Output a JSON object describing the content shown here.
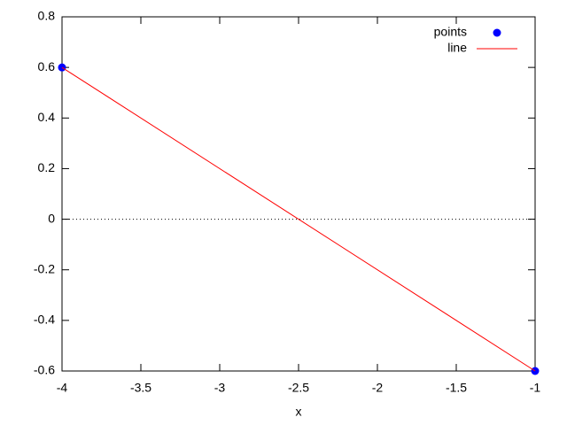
{
  "chart_data": {
    "type": "line",
    "xlabel": "x",
    "x": [
      -4,
      -1
    ],
    "series": [
      {
        "name": "points",
        "mode": "points",
        "color": "#0000ff",
        "values": [
          0.6,
          -0.6
        ]
      },
      {
        "name": "line",
        "mode": "lines",
        "color": "#ff0000",
        "values": [
          0.6,
          -0.6
        ]
      }
    ],
    "xlim": [
      -4,
      -1
    ],
    "xticks": [
      -4,
      -3.5,
      -3,
      -2.5,
      -2,
      -1.5,
      -1
    ],
    "ylim": [
      -0.6,
      0.8
    ],
    "yticks": [
      -0.6,
      -0.4,
      -0.2,
      0,
      0.2,
      0.4,
      0.6,
      0.8
    ],
    "zeroaxis": true,
    "legend": "top-right"
  }
}
